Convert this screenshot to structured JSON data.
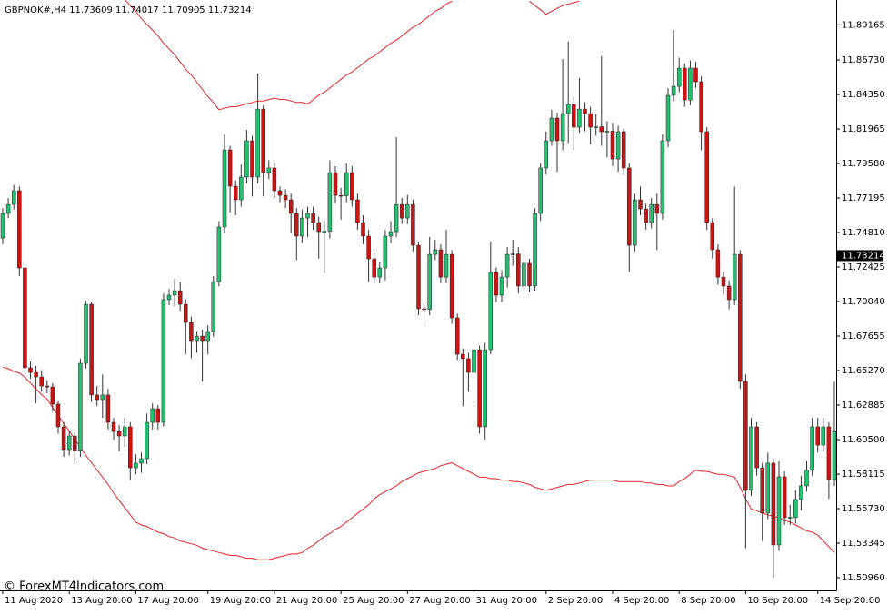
{
  "chart_data": {
    "type": "candlestick",
    "title": "GBPNOK#,H4  11.73609 11.74017 11.70905 11.73214",
    "watermark": "© ForexMT4Indicators.com",
    "up_color": "#26bf72",
    "down_color": "#cc1414",
    "wick_color": "#333333",
    "categories": [
      "11 Aug 2020",
      null,
      null,
      null,
      null,
      null,
      null,
      null,
      null,
      null,
      null,
      null,
      "13 Aug 20:00",
      null,
      null,
      null,
      null,
      null,
      null,
      null,
      null,
      null,
      null,
      null,
      "17 Aug 20:00",
      null,
      null,
      null,
      null,
      null,
      null,
      null,
      null,
      null,
      null,
      null,
      null,
      "19 Aug 20:00",
      null,
      null,
      null,
      null,
      null,
      null,
      null,
      null,
      null,
      null,
      null,
      "21 Aug 20:00",
      null,
      null,
      null,
      null,
      null,
      null,
      null,
      null,
      null,
      null,
      null,
      "25 Aug 20:00",
      null,
      null,
      null,
      null,
      null,
      null,
      null,
      null,
      null,
      null,
      null,
      "27 Aug 20:00",
      null,
      null,
      null,
      null,
      null,
      null,
      null,
      null,
      null,
      null,
      null,
      "31 Aug 20:00",
      null,
      null,
      null,
      null,
      null,
      null,
      null,
      null,
      null,
      null,
      null,
      null,
      "2 Sep 20:00",
      null,
      null,
      null,
      null,
      null,
      null,
      null,
      null,
      null,
      null,
      null,
      "4 Sep 20:00",
      null,
      null,
      null,
      null,
      null,
      null,
      null,
      null,
      null,
      null,
      null,
      "8 Sep 20:00",
      null,
      null,
      null,
      null,
      null,
      null,
      null,
      null,
      null,
      null,
      null,
      "10 Sep 20:00",
      null,
      null,
      null,
      null,
      null,
      null,
      null,
      null,
      null,
      null,
      null,
      null,
      "14 Sep 20:00",
      null,
      null,
      null
    ],
    "open": [
      11.7443,
      11.7613,
      11.7675,
      11.777,
      11.7236,
      11.6546,
      11.6514,
      11.6483,
      11.642,
      11.6414,
      11.6295,
      11.6138,
      11.5981,
      11.6075,
      11.5975,
      11.6577,
      11.6985,
      11.6358,
      11.6326,
      11.6358,
      11.6169,
      11.6106,
      11.6075,
      11.6138,
      11.5855,
      11.5887,
      11.5918,
      11.6169,
      11.6263,
      11.6169,
      11.7017,
      11.7048,
      11.7079,
      11.6985,
      11.686,
      11.6734,
      11.6765,
      11.6734,
      11.6797,
      11.7142,
      11.7519,
      11.8052,
      11.7801,
      11.7707,
      11.7864,
      11.8115,
      11.7864,
      11.8334,
      11.7895,
      11.7927,
      11.777,
      11.7738,
      11.7707,
      11.7613,
      11.7456,
      11.7581,
      11.7613,
      11.755,
      11.7487,
      11.749,
      11.7895,
      11.7738,
      11.7735,
      11.7895,
      11.7707,
      11.755,
      11.7456,
      11.7299,
      11.7173,
      11.7236,
      11.7456,
      11.7487,
      11.7675,
      11.7581,
      11.7675,
      11.7393,
      11.6954,
      11.695,
      11.733,
      11.7362,
      11.7173,
      11.733,
      11.6891,
      11.664,
      11.6609,
      11.6514,
      11.6671,
      11.6138,
      11.6671,
      11.7205,
      11.7048,
      11.7173,
      11.733,
      11.7333,
      11.7111,
      11.7268,
      11.7111,
      11.7613,
      11.7927,
      11.8115,
      11.8272,
      11.8115,
      11.8303,
      11.8366,
      11.8209,
      11.8334,
      11.8303,
      11.8209,
      11.8212,
      11.8178,
      11.8181,
      11.7989,
      11.8178,
      11.7927,
      11.7393,
      11.7707,
      11.7644,
      11.755,
      11.7675,
      11.7613,
      11.8115,
      11.8429,
      11.8491,
      11.8617,
      11.8397,
      11.8617,
      11.8523,
      11.8178,
      11.755,
      11.7362,
      11.7173,
      11.7111,
      11.7017,
      11.733,
      11.6452,
      11.5699,
      11.6138,
      11.5855,
      11.5542,
      11.5887,
      11.5322,
      11.5793,
      11.551,
      11.5513,
      11.5636,
      11.573,
      11.5837,
      11.6138,
      11.6012,
      11.6138,
      11.5774
    ],
    "high": [
      11.765,
      11.772,
      11.781,
      11.78,
      11.726,
      11.659,
      11.656,
      11.653,
      11.646,
      11.644,
      11.632,
      11.617,
      11.611,
      11.61,
      11.661,
      11.701,
      11.7,
      11.642,
      11.65,
      11.64,
      11.62,
      11.615,
      11.62,
      11.617,
      11.595,
      11.596,
      11.623,
      11.63,
      11.629,
      11.706,
      11.709,
      11.716,
      11.714,
      11.702,
      11.69,
      11.68,
      11.681,
      11.684,
      11.718,
      11.756,
      11.816,
      11.808,
      11.784,
      11.795,
      11.819,
      11.815,
      11.858,
      11.836,
      11.798,
      11.796,
      11.78,
      11.778,
      11.775,
      11.765,
      11.764,
      11.766,
      11.766,
      11.759,
      11.756,
      11.798,
      11.794,
      11.779,
      11.796,
      11.794,
      11.775,
      11.76,
      11.75,
      11.734,
      11.728,
      11.75,
      11.756,
      11.814,
      11.772,
      11.774,
      11.771,
      11.742,
      11.701,
      11.745,
      11.743,
      11.74,
      11.75,
      11.736,
      11.692,
      11.668,
      11.665,
      11.672,
      11.67,
      11.672,
      11.742,
      11.724,
      11.722,
      11.738,
      11.743,
      11.738,
      11.733,
      11.73,
      11.765,
      11.796,
      11.818,
      11.833,
      11.831,
      11.868,
      11.88,
      11.842,
      11.855,
      11.838,
      11.835,
      11.83,
      11.87,
      11.825,
      11.824,
      11.822,
      11.82,
      11.796,
      11.775,
      11.78,
      11.768,
      11.772,
      11.775,
      11.816,
      11.848,
      11.888,
      11.869,
      11.865,
      11.867,
      11.866,
      11.856,
      11.821,
      11.758,
      11.74,
      11.721,
      11.715,
      11.78,
      11.736,
      11.65,
      11.62,
      11.617,
      11.589,
      11.596,
      11.592,
      11.59,
      11.583,
      11.56,
      11.57,
      11.58,
      11.59,
      11.62,
      11.62,
      11.62,
      11.617,
      11.645
    ],
    "low": [
      11.74,
      11.758,
      11.764,
      11.718,
      11.65,
      11.647,
      11.63,
      11.638,
      11.637,
      11.625,
      11.609,
      11.593,
      11.594,
      11.588,
      11.593,
      11.654,
      11.631,
      11.628,
      11.62,
      11.612,
      11.605,
      11.597,
      11.6,
      11.577,
      11.581,
      11.582,
      11.588,
      11.612,
      11.612,
      11.614,
      11.698,
      11.697,
      11.694,
      11.664,
      11.661,
      11.665,
      11.645,
      11.664,
      11.676,
      11.711,
      11.748,
      11.762,
      11.76,
      11.766,
      11.782,
      11.773,
      11.782,
      11.773,
      11.785,
      11.772,
      11.769,
      11.765,
      11.748,
      11.729,
      11.741,
      11.745,
      11.75,
      11.73,
      11.72,
      11.744,
      11.768,
      11.757,
      11.769,
      11.766,
      11.75,
      11.74,
      11.714,
      11.713,
      11.713,
      11.715,
      11.741,
      11.745,
      11.754,
      11.754,
      11.735,
      11.691,
      11.683,
      11.691,
      11.729,
      11.713,
      11.713,
      11.685,
      11.66,
      11.628,
      11.638,
      11.63,
      11.609,
      11.605,
      11.664,
      11.7,
      11.7,
      11.71,
      11.725,
      11.706,
      11.708,
      11.707,
      11.708,
      11.756,
      11.788,
      11.808,
      11.79,
      11.805,
      11.81,
      11.805,
      11.817,
      11.818,
      11.809,
      11.815,
      11.808,
      11.8,
      11.794,
      11.79,
      11.788,
      11.721,
      11.735,
      11.76,
      11.75,
      11.751,
      11.736,
      11.757,
      11.807,
      11.839,
      11.845,
      11.835,
      11.836,
      11.848,
      11.805,
      11.75,
      11.73,
      11.712,
      11.705,
      11.695,
      11.698,
      11.64,
      11.53,
      11.566,
      11.58,
      11.535,
      11.55,
      11.5096,
      11.528,
      11.546,
      11.546,
      11.547,
      11.556,
      11.569,
      11.58,
      11.596,
      11.597,
      11.564,
      11.573
    ],
    "close": [
      11.7613,
      11.7675,
      11.777,
      11.7236,
      11.6546,
      11.6514,
      11.6483,
      11.642,
      11.6414,
      11.6295,
      11.6138,
      11.5981,
      11.6075,
      11.5975,
      11.6577,
      11.6985,
      11.6358,
      11.6326,
      11.6358,
      11.6169,
      11.6106,
      11.6075,
      11.6138,
      11.5855,
      11.5887,
      11.5918,
      11.6169,
      11.6263,
      11.6169,
      11.7017,
      11.7048,
      11.7079,
      11.6985,
      11.686,
      11.6734,
      11.6765,
      11.6734,
      11.6797,
      11.7142,
      11.7519,
      11.8052,
      11.7801,
      11.7707,
      11.7864,
      11.8115,
      11.7864,
      11.8334,
      11.7895,
      11.7927,
      11.777,
      11.7738,
      11.7707,
      11.7613,
      11.7456,
      11.7581,
      11.7613,
      11.755,
      11.7487,
      11.749,
      11.7895,
      11.7738,
      11.7735,
      11.7895,
      11.7707,
      11.755,
      11.7456,
      11.7299,
      11.7173,
      11.7236,
      11.7456,
      11.7487,
      11.7675,
      11.7581,
      11.7675,
      11.7393,
      11.6954,
      11.695,
      11.733,
      11.7362,
      11.7173,
      11.733,
      11.6891,
      11.664,
      11.6609,
      11.6514,
      11.6671,
      11.6138,
      11.6671,
      11.7205,
      11.7048,
      11.7173,
      11.733,
      11.7333,
      11.7111,
      11.7268,
      11.7111,
      11.7613,
      11.7927,
      11.8115,
      11.8272,
      11.8115,
      11.8303,
      11.8366,
      11.8209,
      11.8334,
      11.8303,
      11.8209,
      11.8212,
      11.8178,
      11.8181,
      11.7989,
      11.8178,
      11.7927,
      11.7393,
      11.7707,
      11.7644,
      11.755,
      11.7675,
      11.7613,
      11.8115,
      11.8429,
      11.8491,
      11.8617,
      11.8397,
      11.8617,
      11.8523,
      11.8178,
      11.755,
      11.7362,
      11.7173,
      11.7111,
      11.7017,
      11.733,
      11.6452,
      11.5699,
      11.6138,
      11.5855,
      11.5542,
      11.5887,
      11.5322,
      11.5793,
      11.551,
      11.5513,
      11.5636,
      11.573,
      11.5837,
      11.6138,
      11.6012,
      11.6138,
      11.5774,
      11.6106
    ],
    "overlays": [
      {
        "color": "#e8232a",
        "values": [
          null,
          null,
          null,
          null,
          null,
          null,
          null,
          null,
          null,
          null,
          null,
          null,
          null,
          null,
          null,
          null,
          null,
          null,
          null,
          null,
          null,
          null,
          11.909,
          11.905,
          11.901,
          11.896,
          11.892,
          11.888,
          11.884,
          11.879,
          11.875,
          11.871,
          11.866,
          11.861,
          11.857,
          11.852,
          11.847,
          11.842,
          11.838,
          11.833,
          11.834,
          11.835,
          11.835,
          11.836,
          11.837,
          11.838,
          11.839,
          11.839,
          11.84,
          11.841,
          11.84,
          11.84,
          11.839,
          11.838,
          11.838,
          11.837,
          11.84,
          11.843,
          11.845,
          11.848,
          11.851,
          11.854,
          11.857,
          11.859,
          11.862,
          11.865,
          11.868,
          11.87,
          11.873,
          11.876,
          11.879,
          11.881,
          11.884,
          11.887,
          11.89,
          11.892,
          11.895,
          11.898,
          11.901,
          11.903,
          11.906,
          11.908,
          null,
          null,
          null,
          null,
          null,
          null,
          null,
          null,
          null,
          null,
          null,
          null,
          null,
          11.908,
          11.905,
          11.902,
          11.899,
          11.901,
          11.903,
          11.905,
          11.906,
          11.907,
          11.908,
          null,
          null,
          null,
          null,
          null,
          null,
          null,
          null,
          null,
          null,
          null,
          null,
          null,
          null,
          null,
          null,
          null,
          null,
          null,
          null,
          null,
          null,
          null,
          null,
          null,
          null,
          null,
          null,
          null,
          null,
          null,
          null,
          null,
          null,
          null,
          null,
          null,
          null,
          null,
          null,
          null,
          null,
          null,
          null,
          null,
          null
        ]
      },
      {
        "color": "#e8232a",
        "values": [
          11.655,
          11.654,
          11.652,
          11.651,
          11.648,
          11.644,
          11.64,
          11.636,
          11.633,
          11.627,
          11.622,
          11.616,
          11.611,
          11.605,
          11.6,
          11.594,
          11.589,
          11.584,
          11.579,
          11.574,
          11.568,
          11.563,
          11.558,
          11.553,
          11.548,
          11.546,
          11.545,
          11.543,
          11.541,
          11.54,
          11.538,
          11.537,
          11.535,
          11.534,
          11.533,
          11.532,
          11.53,
          11.529,
          11.528,
          11.527,
          11.526,
          11.525,
          11.525,
          11.524,
          11.523,
          11.523,
          11.522,
          11.522,
          11.522,
          11.523,
          11.524,
          11.525,
          11.526,
          11.526,
          11.527,
          11.53,
          11.532,
          11.535,
          11.538,
          11.54,
          11.543,
          11.545,
          11.548,
          11.551,
          11.554,
          11.557,
          11.56,
          11.564,
          11.567,
          11.569,
          11.571,
          11.573,
          11.576,
          11.578,
          11.58,
          11.582,
          11.583,
          11.584,
          11.585,
          11.587,
          11.588,
          11.589,
          11.587,
          11.585,
          11.583,
          11.581,
          11.579,
          11.579,
          11.578,
          11.578,
          11.577,
          11.577,
          11.576,
          11.576,
          11.575,
          11.574,
          11.572,
          11.571,
          11.57,
          11.571,
          11.572,
          11.573,
          11.574,
          11.574,
          11.575,
          11.576,
          11.577,
          11.577,
          11.577,
          11.577,
          11.577,
          11.576,
          11.576,
          11.576,
          11.576,
          11.576,
          11.575,
          11.575,
          11.574,
          11.574,
          11.573,
          11.573,
          11.576,
          11.578,
          11.581,
          11.584,
          11.583,
          11.583,
          11.582,
          11.581,
          11.581,
          11.58,
          11.579,
          11.572,
          11.564,
          11.557,
          11.556,
          11.554,
          11.553,
          11.552,
          11.551,
          11.549,
          11.548,
          11.546,
          11.544,
          11.542,
          11.541,
          11.539,
          11.535,
          11.531,
          11.527
        ]
      }
    ],
    "ylim": [
      11.5008,
      11.9088
    ],
    "yticks": [
      11.89165,
      {
        "value": 11.8673,
        "label": "11.86730"
      },
      {
        "value": 11.8435,
        "label": "11.84350"
      },
      11.81965,
      {
        "value": 11.7958,
        "label": "11.79580"
      },
      11.77195,
      {
        "value": 11.7481,
        "label": "11.74810"
      },
      11.72425,
      {
        "value": 11.7004,
        "label": "11.70040"
      },
      11.67655,
      {
        "value": 11.6527,
        "label": "11.65270"
      },
      11.62885,
      {
        "value": 11.605,
        "label": "11.60500"
      },
      11.58115,
      {
        "value": 11.5573,
        "label": "11.55730"
      },
      11.53345,
      {
        "value": 11.5096,
        "label": "11.50960"
      }
    ],
    "current_price": 11.73214
  }
}
